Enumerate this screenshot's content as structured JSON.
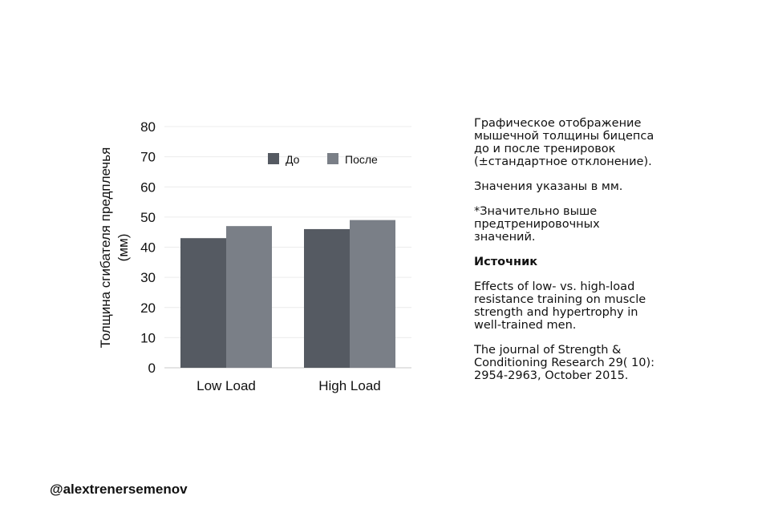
{
  "chart_data": {
    "type": "bar",
    "ylabel_lines": [
      "Толщина сгибателя предплечья",
      "(мм)"
    ],
    "xlabel": "",
    "ylim": [
      0,
      80
    ],
    "yticks": [
      0,
      10,
      20,
      30,
      40,
      50,
      60,
      70,
      80
    ],
    "grid": true,
    "legend_position": "top-center",
    "categories": [
      "Low Load",
      "High Load"
    ],
    "series": [
      {
        "name": "До",
        "color": "#555a62",
        "values": [
          43,
          46
        ]
      },
      {
        "name": "После",
        "color": "#7a7f87",
        "values": [
          47,
          49
        ]
      }
    ]
  },
  "side": {
    "p1": "Графическое отображение\nмышечной толщины бицепса\nдо и после тренировок\n(±стандартное отклонение).",
    "p2": "Значения указаны в мм.",
    "p3": "*Значительно выше\nпредтренировочных\nзначений.",
    "source_heading": "Источник",
    "p4": "Effects of low- vs. high-load\nresistance training on muscle\nstrength and hypertrophy in\nwell-trained men.",
    "p5": "The journal of Strength &\nConditioning Research 29( 10):\n2954-2963, October 2015."
  },
  "handle": "@alextrenersemenov"
}
